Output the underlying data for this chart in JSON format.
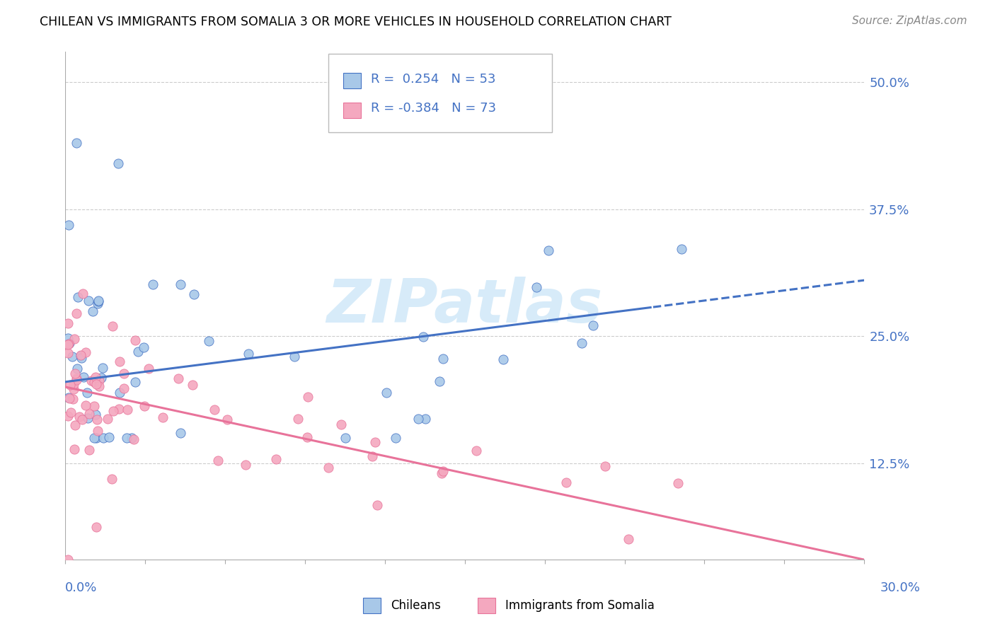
{
  "title": "CHILEAN VS IMMIGRANTS FROM SOMALIA 3 OR MORE VEHICLES IN HOUSEHOLD CORRELATION CHART",
  "source": "Source: ZipAtlas.com",
  "xmin": 0.0,
  "xmax": 30.0,
  "ymin": 3.0,
  "ymax": 53.0,
  "ylabel_ticks": [
    12.5,
    25.0,
    37.5,
    50.0
  ],
  "ylabel_labels": [
    "12.5%",
    "25.0%",
    "37.5%",
    "50.0%"
  ],
  "legend_r1": "R =  0.254",
  "legend_n1": "N = 53",
  "legend_r2": "R = -0.384",
  "legend_n2": "N = 73",
  "chilean_color": "#a8c8e8",
  "somalia_color": "#f4a8bf",
  "trendline_chilean_color": "#4472c4",
  "trendline_somalia_color": "#e8739a",
  "watermark_text": "ZIPatlas",
  "watermark_color": "#d0e8f8",
  "trendline_chilean_x0": 0.0,
  "trendline_chilean_y0": 20.5,
  "trendline_chilean_x1": 30.0,
  "trendline_chilean_y1": 30.5,
  "trendline_soma_x0": 0.0,
  "trendline_soma_y0": 20.0,
  "trendline_soma_x1": 30.0,
  "trendline_soma_y1": 3.0,
  "trendline_solid_chilean_end": 22.0,
  "trendline_solid_soma_end": 30.0
}
